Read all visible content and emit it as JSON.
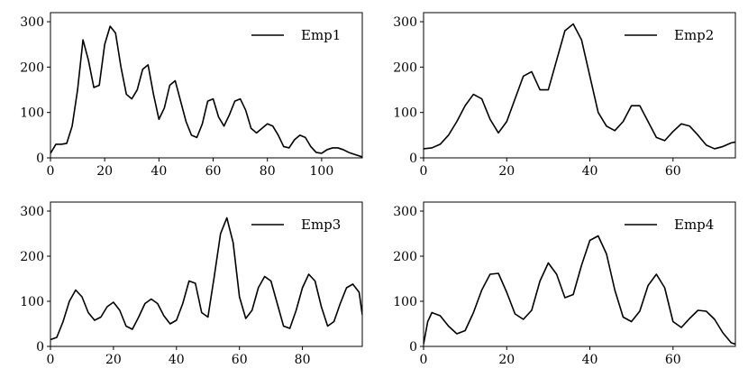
{
  "chart_data": [
    {
      "type": "line",
      "legend": "Emp1",
      "legend_position": "top-right",
      "xlim": [
        0,
        115
      ],
      "ylim": [
        0,
        320
      ],
      "xticks": [
        0,
        20,
        40,
        60,
        80,
        100
      ],
      "yticks": [
        0,
        100,
        200,
        300
      ],
      "series": [
        {
          "name": "Emp1",
          "x": [
            0,
            2,
            4,
            6,
            8,
            10,
            12,
            14,
            16,
            18,
            20,
            22,
            24,
            26,
            28,
            30,
            32,
            34,
            36,
            38,
            40,
            42,
            44,
            46,
            48,
            50,
            52,
            54,
            56,
            58,
            60,
            62,
            64,
            66,
            68,
            70,
            72,
            74,
            76,
            78,
            80,
            82,
            84,
            86,
            88,
            90,
            92,
            94,
            96,
            98,
            100,
            102,
            104,
            106,
            108,
            110,
            112,
            115
          ],
          "y": [
            10,
            30,
            30,
            32,
            70,
            150,
            260,
            215,
            155,
            160,
            250,
            290,
            275,
            200,
            140,
            130,
            150,
            195,
            205,
            140,
            85,
            110,
            160,
            170,
            125,
            80,
            50,
            45,
            75,
            125,
            130,
            90,
            70,
            95,
            125,
            130,
            105,
            65,
            55,
            65,
            75,
            70,
            50,
            25,
            22,
            40,
            50,
            45,
            25,
            12,
            10,
            18,
            22,
            22,
            18,
            12,
            8,
            2
          ]
        }
      ]
    },
    {
      "type": "line",
      "legend": "Emp2",
      "legend_position": "top-right",
      "xlim": [
        0,
        75
      ],
      "ylim": [
        0,
        320
      ],
      "xticks": [
        0,
        20,
        40,
        60
      ],
      "yticks": [
        0,
        100,
        200,
        300
      ],
      "series": [
        {
          "name": "Emp2",
          "x": [
            0,
            2,
            4,
            6,
            8,
            10,
            12,
            14,
            16,
            18,
            20,
            22,
            24,
            26,
            28,
            30,
            32,
            34,
            36,
            38,
            40,
            42,
            44,
            46,
            48,
            50,
            52,
            54,
            56,
            58,
            60,
            62,
            64,
            66,
            68,
            70,
            72,
            74,
            75
          ],
          "y": [
            20,
            22,
            30,
            50,
            80,
            115,
            140,
            130,
            85,
            55,
            80,
            130,
            180,
            190,
            150,
            150,
            215,
            280,
            295,
            260,
            180,
            100,
            70,
            60,
            80,
            115,
            115,
            80,
            45,
            38,
            58,
            75,
            70,
            50,
            28,
            20,
            25,
            33,
            35
          ]
        }
      ]
    },
    {
      "type": "line",
      "legend": "Emp3",
      "legend_position": "top-right",
      "xlim": [
        0,
        99
      ],
      "ylim": [
        0,
        320
      ],
      "xticks": [
        0,
        20,
        40,
        60,
        80
      ],
      "yticks": [
        0,
        100,
        200,
        300
      ],
      "series": [
        {
          "name": "Emp3",
          "x": [
            0,
            2,
            4,
            6,
            8,
            10,
            12,
            14,
            16,
            18,
            20,
            22,
            24,
            26,
            28,
            30,
            32,
            34,
            36,
            38,
            40,
            42,
            44,
            46,
            48,
            50,
            52,
            54,
            56,
            58,
            60,
            62,
            64,
            66,
            68,
            70,
            72,
            74,
            76,
            78,
            80,
            82,
            84,
            86,
            88,
            90,
            92,
            94,
            96,
            98,
            99
          ],
          "y": [
            15,
            20,
            55,
            100,
            125,
            110,
            75,
            58,
            65,
            88,
            98,
            80,
            45,
            38,
            65,
            95,
            105,
            95,
            68,
            50,
            58,
            95,
            145,
            140,
            75,
            65,
            155,
            250,
            285,
            230,
            110,
            62,
            80,
            130,
            155,
            145,
            95,
            45,
            40,
            80,
            130,
            160,
            145,
            88,
            45,
            55,
            95,
            130,
            138,
            120,
            70
          ]
        }
      ]
    },
    {
      "type": "line",
      "legend": "Emp4",
      "legend_position": "top-right",
      "xlim": [
        0,
        75
      ],
      "ylim": [
        0,
        320
      ],
      "xticks": [
        0,
        20,
        40,
        60
      ],
      "yticks": [
        0,
        100,
        200,
        300
      ],
      "series": [
        {
          "name": "Emp4",
          "x": [
            0,
            1,
            2,
            4,
            6,
            8,
            10,
            12,
            14,
            16,
            18,
            20,
            22,
            24,
            26,
            28,
            30,
            32,
            34,
            36,
            38,
            40,
            42,
            44,
            46,
            48,
            50,
            52,
            54,
            56,
            58,
            60,
            62,
            64,
            66,
            68,
            70,
            72,
            74,
            75
          ],
          "y": [
            5,
            55,
            75,
            68,
            45,
            28,
            35,
            75,
            125,
            160,
            162,
            120,
            72,
            60,
            80,
            145,
            185,
            160,
            108,
            115,
            180,
            235,
            245,
            205,
            125,
            65,
            55,
            78,
            135,
            160,
            130,
            55,
            42,
            62,
            80,
            78,
            60,
            30,
            8,
            5
          ]
        }
      ]
    }
  ]
}
